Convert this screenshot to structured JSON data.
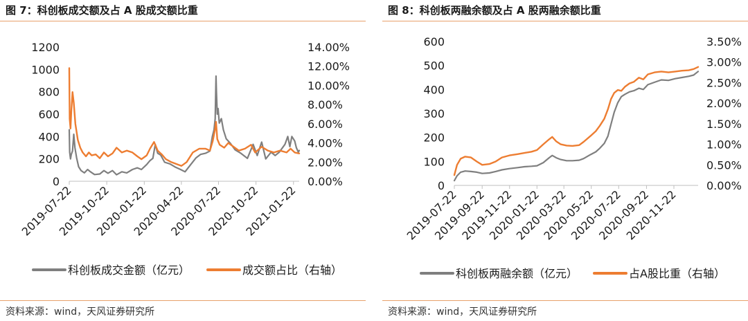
{
  "panels": [
    {
      "title": "图 7：科创板成交额及占 A 股成交额比重",
      "source": "资料来源：wind，天风证券研究所"
    },
    {
      "title": "图 8：科创板两融余额及占 A 股两融余额比重",
      "source": "资料来源：wind，天风证券研究所"
    }
  ],
  "chart_data": [
    {
      "type": "line",
      "x_tick_labels": [
        "2019-07-22",
        "2019-10-22",
        "2020-01-22",
        "2020-04-22",
        "2020-07-22",
        "2020-10-22",
        "2021-01-22"
      ],
      "x_range": [
        "2019-07-22",
        "2021-02-05"
      ],
      "y_left": {
        "ylim": [
          0,
          1200
        ],
        "ticks": [
          "0",
          "200",
          "400",
          "600",
          "800",
          "1000",
          "1200"
        ]
      },
      "y_right": {
        "ylim": [
          0,
          0.14
        ],
        "ticks": [
          "0.00%",
          "2.00%",
          "4.00%",
          "6.00%",
          "8.00%",
          "10.00%",
          "12.00%",
          "14.00%"
        ]
      },
      "grid": false,
      "legend_position": "bottom",
      "series": [
        {
          "name": "科创板成交金额（亿元）",
          "axis": "left",
          "color": "#7f7f7f",
          "points": [
            [
              "2019-07-22",
              460
            ],
            [
              "2019-07-23",
              260
            ],
            [
              "2019-07-25",
              200
            ],
            [
              "2019-07-27",
              240
            ],
            [
              "2019-07-30",
              270
            ],
            [
              "2019-08-02",
              420
            ],
            [
              "2019-08-05",
              300
            ],
            [
              "2019-08-09",
              210
            ],
            [
              "2019-08-14",
              130
            ],
            [
              "2019-08-20",
              95
            ],
            [
              "2019-08-28",
              75
            ],
            [
              "2019-09-05",
              105
            ],
            [
              "2019-09-12",
              85
            ],
            [
              "2019-09-22",
              60
            ],
            [
              "2019-10-05",
              65
            ],
            [
              "2019-10-15",
              95
            ],
            [
              "2019-10-25",
              72
            ],
            [
              "2019-11-05",
              95
            ],
            [
              "2019-11-15",
              58
            ],
            [
              "2019-11-28",
              85
            ],
            [
              "2019-12-10",
              75
            ],
            [
              "2019-12-24",
              105
            ],
            [
              "2020-01-05",
              120
            ],
            [
              "2020-01-15",
              105
            ],
            [
              "2020-01-28",
              150
            ],
            [
              "2020-02-05",
              185
            ],
            [
              "2020-02-12",
              205
            ],
            [
              "2020-02-18",
              330
            ],
            [
              "2020-02-24",
              250
            ],
            [
              "2020-03-02",
              235
            ],
            [
              "2020-03-12",
              170
            ],
            [
              "2020-03-25",
              155
            ],
            [
              "2020-04-08",
              125
            ],
            [
              "2020-04-20",
              105
            ],
            [
              "2020-05-01",
              85
            ],
            [
              "2020-05-15",
              150
            ],
            [
              "2020-05-28",
              210
            ],
            [
              "2020-06-08",
              240
            ],
            [
              "2020-06-20",
              250
            ],
            [
              "2020-07-01",
              270
            ],
            [
              "2020-07-07",
              400
            ],
            [
              "2020-07-11",
              460
            ],
            [
              "2020-07-14",
              560
            ],
            [
              "2020-07-16",
              940
            ],
            [
              "2020-07-17",
              800
            ],
            [
              "2020-07-19",
              600
            ],
            [
              "2020-07-21",
              650
            ],
            [
              "2020-07-24",
              520
            ],
            [
              "2020-07-29",
              560
            ],
            [
              "2020-08-03",
              460
            ],
            [
              "2020-08-10",
              380
            ],
            [
              "2020-08-20",
              340
            ],
            [
              "2020-09-01",
              280
            ],
            [
              "2020-09-15",
              250
            ],
            [
              "2020-10-01",
              205
            ],
            [
              "2020-10-15",
              330
            ],
            [
              "2020-10-25",
              230
            ],
            [
              "2020-11-05",
              350
            ],
            [
              "2020-11-15",
              200
            ],
            [
              "2020-11-28",
              260
            ],
            [
              "2020-12-08",
              230
            ],
            [
              "2020-12-18",
              260
            ],
            [
              "2021-01-01",
              330
            ],
            [
              "2021-01-08",
              400
            ],
            [
              "2021-01-13",
              310
            ],
            [
              "2021-01-18",
              400
            ],
            [
              "2021-01-25",
              360
            ],
            [
              "2021-01-29",
              300
            ],
            [
              "2021-02-03",
              260
            ],
            [
              "2021-02-05",
              275
            ]
          ]
        },
        {
          "name": "成交额占比（右轴）",
          "axis": "right",
          "color": "#ed7d31",
          "points": [
            [
              "2019-07-22",
              0.118
            ],
            [
              "2019-07-23",
              0.065
            ],
            [
              "2019-07-25",
              0.055
            ],
            [
              "2019-07-27",
              0.072
            ],
            [
              "2019-07-30",
              0.093
            ],
            [
              "2019-08-02",
              0.082
            ],
            [
              "2019-08-06",
              0.06
            ],
            [
              "2019-08-12",
              0.043
            ],
            [
              "2019-08-18",
              0.035
            ],
            [
              "2019-08-24",
              0.03
            ],
            [
              "2019-09-01",
              0.026
            ],
            [
              "2019-09-08",
              0.03
            ],
            [
              "2019-09-15",
              0.027
            ],
            [
              "2019-09-25",
              0.028
            ],
            [
              "2019-10-05",
              0.024
            ],
            [
              "2019-10-15",
              0.03
            ],
            [
              "2019-10-25",
              0.026
            ],
            [
              "2019-11-05",
              0.029
            ],
            [
              "2019-11-15",
              0.035
            ],
            [
              "2019-11-28",
              0.03
            ],
            [
              "2019-12-10",
              0.032
            ],
            [
              "2019-12-24",
              0.03
            ],
            [
              "2020-01-05",
              0.026
            ],
            [
              "2020-01-15",
              0.023
            ],
            [
              "2020-01-28",
              0.027
            ],
            [
              "2020-02-05",
              0.034
            ],
            [
              "2020-02-15",
              0.041
            ],
            [
              "2020-02-24",
              0.032
            ],
            [
              "2020-03-05",
              0.028
            ],
            [
              "2020-03-15",
              0.023
            ],
            [
              "2020-03-28",
              0.02
            ],
            [
              "2020-04-10",
              0.018
            ],
            [
              "2020-04-22",
              0.016
            ],
            [
              "2020-05-05",
              0.02
            ],
            [
              "2020-05-20",
              0.03
            ],
            [
              "2020-06-05",
              0.034
            ],
            [
              "2020-06-20",
              0.034
            ],
            [
              "2020-07-01",
              0.032
            ],
            [
              "2020-07-08",
              0.042
            ],
            [
              "2020-07-14",
              0.055
            ],
            [
              "2020-07-16",
              0.062
            ],
            [
              "2020-07-19",
              0.044
            ],
            [
              "2020-07-25",
              0.038
            ],
            [
              "2020-08-05",
              0.035
            ],
            [
              "2020-08-15",
              0.04
            ],
            [
              "2020-08-28",
              0.036
            ],
            [
              "2020-09-10",
              0.032
            ],
            [
              "2020-09-25",
              0.034
            ],
            [
              "2020-10-10",
              0.038
            ],
            [
              "2020-10-20",
              0.03
            ],
            [
              "2020-11-05",
              0.036
            ],
            [
              "2020-11-20",
              0.032
            ],
            [
              "2020-12-05",
              0.03
            ],
            [
              "2020-12-20",
              0.032
            ],
            [
              "2021-01-05",
              0.03
            ],
            [
              "2021-01-15",
              0.034
            ],
            [
              "2021-01-25",
              0.03
            ],
            [
              "2021-02-05",
              0.029
            ]
          ]
        }
      ]
    },
    {
      "type": "line",
      "x_tick_labels": [
        "2019-07-22",
        "2019-09-22",
        "2019-11-22",
        "2020-01-22",
        "2020-03-22",
        "2020-05-22",
        "2020-07-22",
        "2020-09-22",
        "2020-11-22"
      ],
      "x_range": [
        "2019-07-22",
        "2021-01-15"
      ],
      "y_left": {
        "ylim": [
          0,
          600
        ],
        "ticks": [
          "0",
          "100",
          "200",
          "300",
          "400",
          "500",
          "600"
        ]
      },
      "y_right": {
        "ylim": [
          0,
          0.035
        ],
        "ticks": [
          "0.00%",
          "0.50%",
          "1.00%",
          "1.50%",
          "2.00%",
          "2.50%",
          "3.00%",
          "3.50%"
        ]
      },
      "grid": false,
      "legend_position": "bottom",
      "series": [
        {
          "name": "科创板两融余额（亿元）",
          "axis": "left",
          "color": "#7f7f7f",
          "points": [
            [
              "2019-07-22",
              20
            ],
            [
              "2019-07-28",
              40
            ],
            [
              "2019-08-05",
              55
            ],
            [
              "2019-08-15",
              60
            ],
            [
              "2019-08-28",
              58
            ],
            [
              "2019-09-10",
              55
            ],
            [
              "2019-09-22",
              50
            ],
            [
              "2019-10-08",
              52
            ],
            [
              "2019-10-22",
              58
            ],
            [
              "2019-11-05",
              65
            ],
            [
              "2019-11-22",
              70
            ],
            [
              "2019-12-10",
              74
            ],
            [
              "2019-12-25",
              78
            ],
            [
              "2020-01-10",
              80
            ],
            [
              "2020-01-22",
              82
            ],
            [
              "2020-02-05",
              95
            ],
            [
              "2020-02-18",
              115
            ],
            [
              "2020-02-25",
              125
            ],
            [
              "2020-03-05",
              115
            ],
            [
              "2020-03-15",
              108
            ],
            [
              "2020-03-28",
              103
            ],
            [
              "2020-04-10",
              103
            ],
            [
              "2020-04-25",
              105
            ],
            [
              "2020-05-05",
              112
            ],
            [
              "2020-05-20",
              128
            ],
            [
              "2020-06-01",
              140
            ],
            [
              "2020-06-10",
              155
            ],
            [
              "2020-06-20",
              175
            ],
            [
              "2020-06-28",
              205
            ],
            [
              "2020-07-05",
              255
            ],
            [
              "2020-07-12",
              305
            ],
            [
              "2020-07-20",
              345
            ],
            [
              "2020-07-28",
              370
            ],
            [
              "2020-08-05",
              380
            ],
            [
              "2020-08-15",
              390
            ],
            [
              "2020-08-25",
              395
            ],
            [
              "2020-09-05",
              405
            ],
            [
              "2020-09-15",
              400
            ],
            [
              "2020-09-25",
              420
            ],
            [
              "2020-10-10",
              430
            ],
            [
              "2020-10-25",
              440
            ],
            [
              "2020-11-10",
              438
            ],
            [
              "2020-11-25",
              445
            ],
            [
              "2020-12-10",
              450
            ],
            [
              "2020-12-25",
              455
            ],
            [
              "2021-01-05",
              460
            ],
            [
              "2021-01-15",
              475
            ]
          ]
        },
        {
          "name": "占A股比重（右轴）",
          "axis": "right",
          "color": "#ed7d31",
          "points": [
            [
              "2019-07-22",
              0.0025
            ],
            [
              "2019-07-28",
              0.005
            ],
            [
              "2019-08-05",
              0.0065
            ],
            [
              "2019-08-15",
              0.007
            ],
            [
              "2019-08-28",
              0.0068
            ],
            [
              "2019-09-10",
              0.0058
            ],
            [
              "2019-09-22",
              0.005
            ],
            [
              "2019-10-08",
              0.0052
            ],
            [
              "2019-10-22",
              0.0058
            ],
            [
              "2019-11-05",
              0.0068
            ],
            [
              "2019-11-22",
              0.0073
            ],
            [
              "2019-12-10",
              0.0076
            ],
            [
              "2019-12-25",
              0.0079
            ],
            [
              "2020-01-10",
              0.0082
            ],
            [
              "2020-01-22",
              0.0086
            ],
            [
              "2020-02-05",
              0.01
            ],
            [
              "2020-02-18",
              0.0112
            ],
            [
              "2020-02-25",
              0.0118
            ],
            [
              "2020-03-05",
              0.0107
            ],
            [
              "2020-03-15",
              0.01
            ],
            [
              "2020-03-28",
              0.0097
            ],
            [
              "2020-04-10",
              0.0096
            ],
            [
              "2020-04-25",
              0.0098
            ],
            [
              "2020-05-05",
              0.0106
            ],
            [
              "2020-05-20",
              0.012
            ],
            [
              "2020-06-01",
              0.0132
            ],
            [
              "2020-06-10",
              0.0145
            ],
            [
              "2020-06-20",
              0.0162
            ],
            [
              "2020-06-28",
              0.0185
            ],
            [
              "2020-07-05",
              0.021
            ],
            [
              "2020-07-12",
              0.0225
            ],
            [
              "2020-07-20",
              0.0232
            ],
            [
              "2020-07-28",
              0.023
            ],
            [
              "2020-08-05",
              0.024
            ],
            [
              "2020-08-15",
              0.0248
            ],
            [
              "2020-08-25",
              0.0252
            ],
            [
              "2020-09-05",
              0.0262
            ],
            [
              "2020-09-15",
              0.0258
            ],
            [
              "2020-09-25",
              0.027
            ],
            [
              "2020-10-10",
              0.0275
            ],
            [
              "2020-10-25",
              0.0277
            ],
            [
              "2020-11-10",
              0.0275
            ],
            [
              "2020-11-25",
              0.0277
            ],
            [
              "2020-12-10",
              0.0279
            ],
            [
              "2020-12-25",
              0.028
            ],
            [
              "2021-01-05",
              0.0283
            ],
            [
              "2021-01-15",
              0.0288
            ]
          ]
        }
      ]
    }
  ]
}
